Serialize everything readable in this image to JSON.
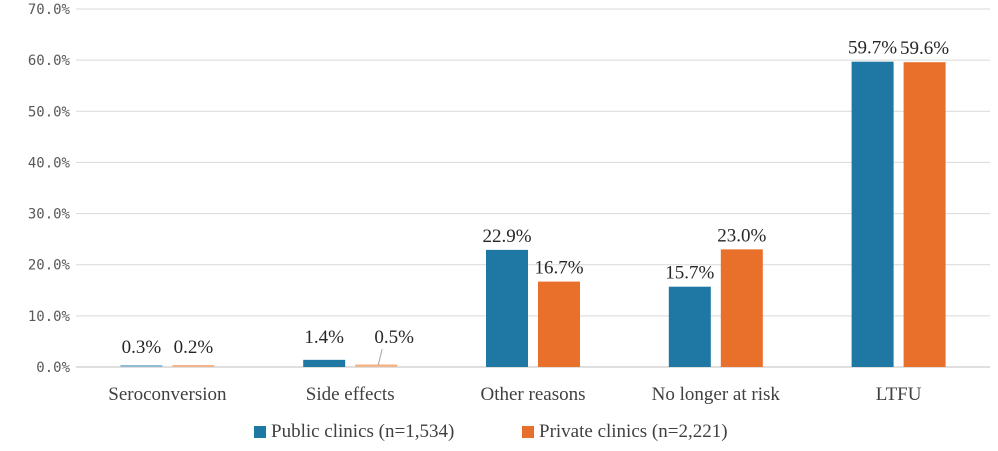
{
  "chart_data": {
    "type": "bar",
    "title": "",
    "xlabel": "",
    "ylabel": "",
    "ylim": [
      0,
      70
    ],
    "yticks": [
      "0.0%",
      "10.0%",
      "20.0%",
      "30.0%",
      "40.0%",
      "50.0%",
      "60.0%",
      "70.0%"
    ],
    "grid": true,
    "legend_position": "bottom",
    "categories": [
      "Seroconversion",
      "Side effects",
      "Other reasons",
      "No longer at risk",
      "LTFU"
    ],
    "series": [
      {
        "name": "Public clinics (n=1,534)",
        "color": "#1f77a4",
        "values": [
          0.3,
          1.4,
          22.9,
          15.7,
          59.7
        ],
        "labels": [
          "0.3%",
          "1.4%",
          "22.9%",
          "15.7%",
          "59.7%"
        ]
      },
      {
        "name": "Private clinics (n=2,221)",
        "color": "#e8702a",
        "values": [
          0.2,
          0.5,
          16.7,
          23.0,
          59.6
        ],
        "labels": [
          "0.2%",
          "0.5%",
          "16.7%",
          "23.0%",
          "59.6%"
        ]
      }
    ]
  }
}
